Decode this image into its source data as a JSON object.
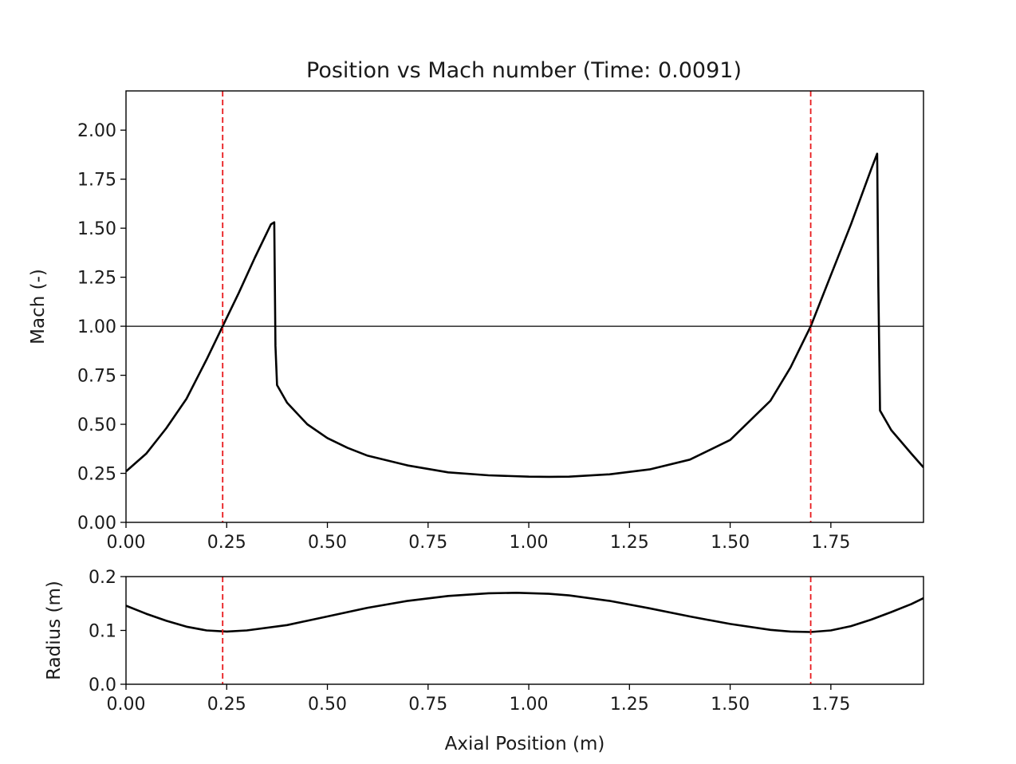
{
  "chart_data": [
    {
      "type": "line",
      "title": "Position vs Mach number (Time: 0.0091)",
      "xlabel": "",
      "ylabel": "Mach (-)",
      "xlim": [
        0,
        1.98
      ],
      "ylim": [
        0,
        2.2
      ],
      "xticks": [
        "0.00",
        "0.25",
        "0.50",
        "0.75",
        "1.00",
        "1.25",
        "1.50",
        "1.75"
      ],
      "yticks": [
        "0.00",
        "0.25",
        "0.50",
        "0.75",
        "1.00",
        "1.25",
        "1.50",
        "1.75",
        "2.00"
      ],
      "grid": false,
      "series": [
        {
          "color": "#000000",
          "x": [
            0.0,
            0.05,
            0.1,
            0.15,
            0.2,
            0.24,
            0.28,
            0.32,
            0.36,
            0.368,
            0.371,
            0.375,
            0.4,
            0.45,
            0.5,
            0.55,
            0.6,
            0.7,
            0.8,
            0.9,
            1.0,
            1.05,
            1.1,
            1.2,
            1.3,
            1.4,
            1.5,
            1.6,
            1.65,
            1.7,
            1.75,
            1.8,
            1.85,
            1.865,
            1.868,
            1.872,
            1.9,
            1.95,
            1.98
          ],
          "y": [
            0.26,
            0.35,
            0.48,
            0.63,
            0.83,
            1.0,
            1.17,
            1.35,
            1.52,
            1.53,
            0.9,
            0.7,
            0.61,
            0.5,
            0.43,
            0.38,
            0.34,
            0.29,
            0.255,
            0.24,
            0.233,
            0.232,
            0.233,
            0.245,
            0.27,
            0.32,
            0.42,
            0.62,
            0.79,
            1.0,
            1.26,
            1.52,
            1.8,
            1.88,
            1.2,
            0.57,
            0.47,
            0.35,
            0.28
          ]
        },
        {
          "color": "#000000",
          "x": [
            0.0,
            1.98
          ],
          "y": [
            1.0,
            1.0
          ]
        }
      ],
      "vlines": [
        {
          "x": 0.24,
          "color": "#e8191c"
        },
        {
          "x": 1.7,
          "color": "#e8191c"
        }
      ]
    },
    {
      "type": "line",
      "title": "",
      "xlabel": "Axial Position (m)",
      "ylabel": "Radius (m)",
      "xlim": [
        0,
        1.98
      ],
      "ylim": [
        0,
        0.2
      ],
      "xticks": [
        "0.00",
        "0.25",
        "0.50",
        "0.75",
        "1.00",
        "1.25",
        "1.50",
        "1.75"
      ],
      "yticks": [
        "0.0",
        "0.1",
        "0.2"
      ],
      "grid": false,
      "series": [
        {
          "color": "#000000",
          "x": [
            0.0,
            0.05,
            0.1,
            0.15,
            0.2,
            0.25,
            0.3,
            0.4,
            0.5,
            0.6,
            0.7,
            0.8,
            0.9,
            0.97,
            1.05,
            1.1,
            1.2,
            1.3,
            1.4,
            1.5,
            1.6,
            1.65,
            1.7,
            1.75,
            1.8,
            1.85,
            1.9,
            1.95,
            1.98
          ],
          "y": [
            0.146,
            0.131,
            0.118,
            0.107,
            0.1,
            0.098,
            0.1,
            0.11,
            0.126,
            0.142,
            0.155,
            0.164,
            0.169,
            0.17,
            0.168,
            0.165,
            0.155,
            0.141,
            0.126,
            0.112,
            0.101,
            0.098,
            0.097,
            0.1,
            0.108,
            0.12,
            0.134,
            0.149,
            0.16
          ]
        }
      ],
      "vlines": [
        {
          "x": 0.24,
          "color": "#e8191c"
        },
        {
          "x": 1.7,
          "color": "#e8191c"
        }
      ]
    }
  ]
}
